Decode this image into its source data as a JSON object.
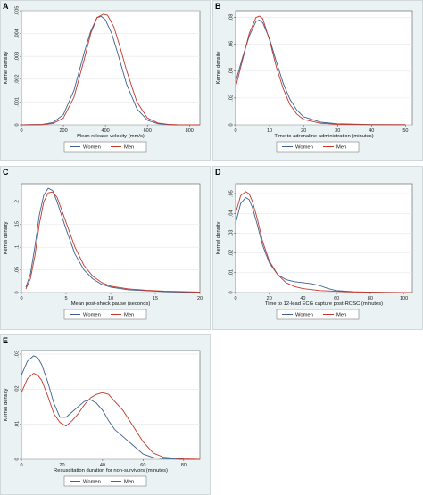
{
  "colors": {
    "women": "#3d5f8f",
    "men": "#c0392b",
    "panel_bg": "#eaf2f3",
    "frame": "#b7c3c7"
  },
  "legend_labels": [
    "Women",
    "Men"
  ],
  "chart_data": [
    {
      "panel": "A",
      "type": "line",
      "xlabel": "Mean release velocity (mm/s)",
      "ylabel": "Kernel density",
      "xlim": [
        0,
        850
      ],
      "ylim": [
        0,
        0.005
      ],
      "xticks": [
        0,
        200,
        400,
        600,
        800
      ],
      "xtick_labels": [
        "0",
        "200",
        "400",
        "600",
        "800"
      ],
      "yticks": [
        0,
        0.001,
        0.002,
        0.003,
        0.004,
        0.005
      ],
      "ytick_labels": [
        "0",
        ".001",
        ".002",
        ".003",
        ".004",
        ".005"
      ],
      "grid": true,
      "legend": "bottom",
      "series": [
        {
          "name": "Women",
          "x": [
            0,
            100,
            150,
            200,
            250,
            300,
            330,
            360,
            380,
            400,
            430,
            460,
            500,
            550,
            600,
            650,
            700,
            750,
            800,
            850
          ],
          "y": [
            0,
            2e-05,
            0.0001,
            0.00045,
            0.0015,
            0.0032,
            0.0041,
            0.0047,
            0.00475,
            0.0046,
            0.004,
            0.0031,
            0.0018,
            0.0007,
            0.0002,
            5e-05,
            1e-05,
            0,
            0,
            0
          ]
        },
        {
          "name": "Men",
          "x": [
            0,
            100,
            150,
            200,
            250,
            300,
            330,
            360,
            390,
            410,
            440,
            470,
            500,
            550,
            600,
            650,
            700,
            750,
            800,
            850
          ],
          "y": [
            0,
            1e-05,
            6e-05,
            0.0003,
            0.0012,
            0.0029,
            0.004,
            0.0047,
            0.00485,
            0.0048,
            0.0043,
            0.0034,
            0.0024,
            0.001,
            0.0003,
            8e-05,
            2e-05,
            0,
            0,
            0
          ]
        }
      ]
    },
    {
      "panel": "B",
      "type": "line",
      "xlabel": "Time to adrenaline administration (minutes)",
      "ylabel": "Kernel density",
      "xlim": [
        0,
        52
      ],
      "ylim": [
        0,
        0.085
      ],
      "xticks": [
        0,
        10,
        20,
        30,
        40,
        50
      ],
      "xtick_labels": [
        "0",
        "10",
        "20",
        "30",
        "40",
        "50"
      ],
      "yticks": [
        0,
        0.02,
        0.04,
        0.06,
        0.08
      ],
      "ytick_labels": [
        "0",
        ".02",
        ".04",
        ".06",
        ".08"
      ],
      "grid": true,
      "legend": "bottom",
      "series": [
        {
          "name": "Women",
          "x": [
            0,
            2,
            4,
            6,
            7,
            8,
            10,
            12,
            14,
            16,
            18,
            20,
            25,
            30,
            40,
            50
          ],
          "y": [
            0.032,
            0.05,
            0.066,
            0.077,
            0.078,
            0.076,
            0.064,
            0.047,
            0.031,
            0.019,
            0.011,
            0.006,
            0.002,
            0.0008,
            0.0002,
            0.0001
          ]
        },
        {
          "name": "Men",
          "x": [
            0,
            2,
            4,
            6,
            7,
            8,
            10,
            12,
            14,
            16,
            18,
            20,
            25,
            30,
            40,
            50
          ],
          "y": [
            0.028,
            0.048,
            0.068,
            0.08,
            0.081,
            0.079,
            0.063,
            0.043,
            0.027,
            0.015,
            0.008,
            0.004,
            0.0012,
            0.0004,
            0.0001,
            0.0001
          ]
        }
      ]
    },
    {
      "panel": "C",
      "type": "line",
      "xlabel": "Mean post-shock pause (seconds)",
      "ylabel": "Kernel density",
      "xlim": [
        0,
        20
      ],
      "ylim": [
        0,
        0.24
      ],
      "xticks": [
        0,
        5,
        10,
        15,
        20
      ],
      "xtick_labels": [
        "0",
        "5",
        "10",
        "15",
        "20"
      ],
      "yticks": [
        0,
        0.05,
        0.1,
        0.15,
        0.2
      ],
      "ytick_labels": [
        "0",
        ".05",
        ".1",
        ".15",
        ".2"
      ],
      "grid": true,
      "legend": "bottom",
      "series": [
        {
          "name": "Women",
          "x": [
            0.5,
            1,
            1.5,
            2,
            2.5,
            3,
            3.5,
            4,
            5,
            6,
            7,
            8,
            9,
            10,
            12,
            14,
            16,
            18,
            20
          ],
          "y": [
            0.012,
            0.04,
            0.1,
            0.17,
            0.215,
            0.23,
            0.225,
            0.2,
            0.14,
            0.085,
            0.05,
            0.03,
            0.018,
            0.012,
            0.006,
            0.004,
            0.002,
            0.001,
            0.001
          ]
        },
        {
          "name": "Men",
          "x": [
            0.5,
            1,
            1.5,
            2,
            2.5,
            3,
            3.5,
            4,
            5,
            6,
            7,
            8,
            9,
            10,
            12,
            14,
            16,
            18,
            20
          ],
          "y": [
            0.008,
            0.03,
            0.08,
            0.15,
            0.2,
            0.22,
            0.222,
            0.21,
            0.155,
            0.1,
            0.06,
            0.036,
            0.022,
            0.014,
            0.008,
            0.005,
            0.003,
            0.002,
            0.001
          ]
        }
      ]
    },
    {
      "panel": "D",
      "type": "line",
      "xlabel": "Time to 12-lead ECG capture post-ROSC (minutes)",
      "ylabel": "Kernel density",
      "xlim": [
        0,
        105
      ],
      "ylim": [
        0,
        0.055
      ],
      "xticks": [
        0,
        20,
        40,
        60,
        80,
        100
      ],
      "xtick_labels": [
        "0",
        "20",
        "40",
        "60",
        "80",
        "100"
      ],
      "yticks": [
        0,
        0.01,
        0.02,
        0.03,
        0.04,
        0.05
      ],
      "ytick_labels": [
        "0",
        ".01",
        ".02",
        ".03",
        ".04",
        ".05"
      ],
      "grid": true,
      "legend": "bottom",
      "series": [
        {
          "name": "Women",
          "x": [
            0,
            3,
            6,
            8,
            10,
            13,
            16,
            20,
            25,
            30,
            35,
            40,
            45,
            50,
            55,
            60,
            70,
            80,
            90,
            100,
            105
          ],
          "y": [
            0.035,
            0.045,
            0.048,
            0.047,
            0.043,
            0.034,
            0.024,
            0.015,
            0.009,
            0.0065,
            0.0055,
            0.005,
            0.0045,
            0.0035,
            0.002,
            0.001,
            0.0004,
            0.0002,
            0.0001,
            0,
            0
          ]
        },
        {
          "name": "Men",
          "x": [
            0,
            3,
            6,
            8,
            10,
            13,
            16,
            20,
            25,
            30,
            35,
            40,
            45,
            50,
            55,
            60,
            70,
            80,
            90,
            100,
            105
          ],
          "y": [
            0.04,
            0.049,
            0.051,
            0.05,
            0.046,
            0.037,
            0.026,
            0.016,
            0.009,
            0.005,
            0.003,
            0.002,
            0.0015,
            0.001,
            0.0008,
            0.0006,
            0.0003,
            0.0002,
            0.0001,
            0,
            0
          ]
        }
      ]
    },
    {
      "panel": "E",
      "type": "line",
      "xlabel": "Resuscitation duration for non-survivors (minutes)",
      "ylabel": "Kernel density",
      "xlim": [
        0,
        88
      ],
      "ylim": [
        0,
        0.031
      ],
      "xticks": [
        0,
        20,
        40,
        60,
        80
      ],
      "xtick_labels": [
        "0",
        "20",
        "40",
        "60",
        "80"
      ],
      "yticks": [
        0,
        0.01,
        0.02,
        0.03
      ],
      "ytick_labels": [
        "0",
        ".01",
        ".02",
        ".03"
      ],
      "grid": true,
      "legend": "bottom",
      "series": [
        {
          "name": "Women",
          "x": [
            0,
            3,
            6,
            8,
            10,
            13,
            16,
            19,
            22,
            25,
            28,
            31,
            34,
            37,
            40,
            43,
            46,
            50,
            55,
            60,
            65,
            70,
            80,
            88
          ],
          "y": [
            0.024,
            0.028,
            0.0295,
            0.029,
            0.027,
            0.022,
            0.016,
            0.012,
            0.012,
            0.0135,
            0.015,
            0.0165,
            0.017,
            0.016,
            0.014,
            0.011,
            0.0085,
            0.0065,
            0.004,
            0.0015,
            0.0005,
            0.0002,
            0,
            0
          ]
        },
        {
          "name": "Men",
          "x": [
            0,
            3,
            6,
            8,
            10,
            13,
            16,
            19,
            22,
            25,
            28,
            31,
            34,
            37,
            40,
            43,
            46,
            50,
            55,
            60,
            65,
            70,
            80,
            88
          ],
          "y": [
            0.019,
            0.023,
            0.0245,
            0.024,
            0.0225,
            0.018,
            0.013,
            0.0105,
            0.0095,
            0.011,
            0.013,
            0.0155,
            0.0175,
            0.0185,
            0.019,
            0.0185,
            0.0165,
            0.014,
            0.0095,
            0.005,
            0.0018,
            0.0006,
            0.0001,
            0
          ]
        }
      ]
    }
  ]
}
